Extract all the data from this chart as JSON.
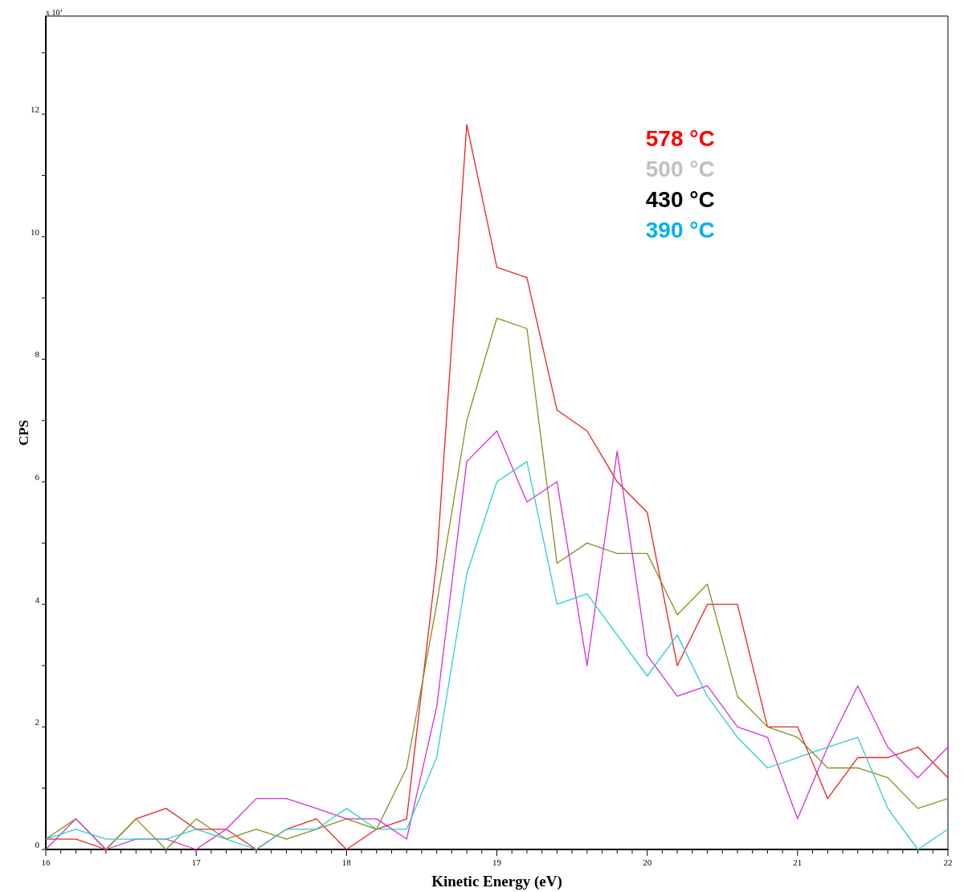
{
  "chart_data": {
    "type": "line",
    "xlabel": "Kinetic Energy (eV)",
    "ylabel": "CPS",
    "x": [
      16,
      16.2,
      16.4,
      16.6,
      16.8,
      17,
      17.2,
      17.4,
      17.6,
      17.8,
      18,
      18.2,
      18.4,
      18.6,
      18.8,
      19,
      19.2,
      19.4,
      19.6,
      19.8,
      20,
      20.2,
      20.4,
      20.6,
      20.8,
      21,
      21.2,
      21.4,
      21.6,
      21.8,
      22
    ],
    "series": [
      {
        "color": "#e8231f",
        "values": [
          0.17,
          0.17,
          0,
          0.5,
          0.67,
          0.33,
          0.33,
          0,
          0.33,
          0.5,
          0,
          0.33,
          0.5,
          4.7,
          11.83,
          9.5,
          9.33,
          7.17,
          6.83,
          6,
          5.5,
          3,
          4,
          4,
          2,
          2,
          0.83,
          1.5,
          1.5,
          1.67,
          1.17
        ]
      },
      {
        "color": "#8c8c1e",
        "values": [
          0.17,
          0.5,
          0,
          0.5,
          0,
          0.5,
          0.17,
          0.33,
          0.17,
          0.33,
          0.5,
          0.33,
          1.33,
          4,
          7,
          8.67,
          8.5,
          4.67,
          5,
          4.83,
          4.83,
          3.83,
          4.33,
          2.5,
          2,
          1.83,
          1.33,
          1.33,
          1.17,
          0.67,
          0.83
        ]
      },
      {
        "color": "#d52ed8",
        "values": [
          0,
          0.5,
          0,
          0.17,
          0.17,
          0,
          0.33,
          0.83,
          0.83,
          0.67,
          0.5,
          0.5,
          0.17,
          2.33,
          6.33,
          6.83,
          5.67,
          6,
          3,
          6.5,
          3.17,
          2.5,
          2.67,
          2,
          1.83,
          0.5,
          1.67,
          2.67,
          1.67,
          1.17,
          1.67
        ]
      },
      {
        "color": "#2cccd4",
        "values": [
          0.17,
          0.33,
          0.17,
          0.17,
          0.17,
          0.33,
          0.17,
          0,
          0.33,
          0.33,
          0.67,
          0.33,
          0.33,
          1.5,
          4.5,
          6,
          6.33,
          4,
          4.17,
          3.5,
          2.83,
          3.5,
          2.5,
          1.83,
          1.33,
          1.5,
          1.67,
          1.83,
          0.67,
          0,
          0.33
        ]
      }
    ],
    "xlim": [
      16,
      22
    ],
    "xticks": [
      16,
      {
        "value": 16.1,
        "label": null
      },
      {
        "value": 16.2,
        "label": null
      },
      {
        "value": 16.3,
        "label": null
      },
      {
        "value": 16.4,
        "label": null
      },
      {
        "value": 16.5,
        "label": null
      },
      {
        "value": 16.6,
        "label": null
      },
      {
        "value": 16.7,
        "label": null
      },
      {
        "value": 16.8,
        "label": null
      },
      {
        "value": 16.9,
        "label": null
      },
      17,
      {
        "value": 17.1,
        "label": null
      },
      {
        "value": 17.2,
        "label": null
      },
      {
        "value": 17.3,
        "label": null
      },
      {
        "value": 17.4,
        "label": null
      },
      {
        "value": 17.5,
        "label": null
      },
      {
        "value": 17.6,
        "label": null
      },
      {
        "value": 17.7,
        "label": null
      },
      {
        "value": 17.8,
        "label": null
      },
      {
        "value": 17.9,
        "label": null
      },
      18,
      {
        "value": 18.1,
        "label": null
      },
      {
        "value": 18.2,
        "label": null
      },
      {
        "value": 18.3,
        "label": null
      },
      {
        "value": 18.4,
        "label": null
      },
      {
        "value": 18.5,
        "label": null
      },
      {
        "value": 18.6,
        "label": null
      },
      {
        "value": 18.7,
        "label": null
      },
      {
        "value": 18.8,
        "label": null
      },
      {
        "value": 18.9,
        "label": null
      },
      19,
      {
        "value": 19.1,
        "label": null
      },
      {
        "value": 19.2,
        "label": null
      },
      {
        "value": 19.3,
        "label": null
      },
      {
        "value": 19.4,
        "label": null
      },
      {
        "value": 19.5,
        "label": null
      },
      {
        "value": 19.6,
        "label": null
      },
      {
        "value": 19.7,
        "label": null
      },
      {
        "value": 19.8,
        "label": null
      },
      {
        "value": 19.9,
        "label": null
      },
      20,
      {
        "value": 20.1,
        "label": null
      },
      {
        "value": 20.2,
        "label": null
      },
      {
        "value": 20.3,
        "label": null
      },
      {
        "value": 20.4,
        "label": null
      },
      {
        "value": 20.5,
        "label": null
      },
      {
        "value": 20.6,
        "label": null
      },
      {
        "value": 20.7,
        "label": null
      },
      {
        "value": 20.8,
        "label": null
      },
      {
        "value": 20.9,
        "label": null
      },
      21,
      {
        "value": 21.1,
        "label": null
      },
      {
        "value": 21.2,
        "label": null
      },
      {
        "value": 21.3,
        "label": null
      },
      {
        "value": 21.4,
        "label": null
      },
      {
        "value": 21.5,
        "label": null
      },
      {
        "value": 21.6,
        "label": null
      },
      {
        "value": 21.7,
        "label": null
      },
      {
        "value": 21.8,
        "label": null
      },
      {
        "value": 21.9,
        "label": null
      },
      22
    ],
    "ylim": [
      0,
      13.6
    ],
    "yticks": [
      0,
      {
        "value": 1,
        "label": null
      },
      2,
      {
        "value": 3,
        "label": null
      },
      4,
      {
        "value": 5,
        "label": null
      },
      6,
      {
        "value": 7,
        "label": null
      },
      8,
      {
        "value": 9,
        "label": null
      },
      10,
      {
        "value": 11,
        "label": null
      },
      12,
      {
        "value": 13,
        "label": null
      }
    ],
    "grid": false,
    "marker": "none",
    "line_style": "solid",
    "annotations": [
      "x 10$^{1}$",
      "578 °C",
      "500 °C",
      "430 °C",
      "390 °C"
    ]
  }
}
